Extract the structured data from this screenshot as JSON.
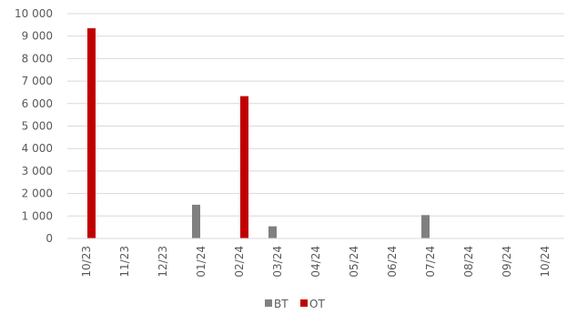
{
  "chart_data": {
    "type": "bar",
    "categories": [
      "10/23",
      "11/23",
      "12/23",
      "01/24",
      "02/24",
      "03/24",
      "04/24",
      "05/24",
      "06/24",
      "07/24",
      "08/24",
      "09/24",
      "10/24"
    ],
    "series": [
      {
        "name": "BT",
        "color": "#808080",
        "values": [
          0,
          0,
          0,
          1500,
          0,
          540,
          0,
          0,
          0,
          1040,
          0,
          0,
          0
        ]
      },
      {
        "name": "OT",
        "color": "#C00000",
        "values": [
          9350,
          0,
          0,
          0,
          6330,
          0,
          0,
          0,
          0,
          0,
          0,
          0,
          0
        ]
      }
    ],
    "ylim": [
      0,
      10000
    ],
    "yticks": [
      0,
      1000,
      2000,
      3000,
      4000,
      5000,
      6000,
      7000,
      8000,
      9000,
      10000
    ],
    "ytick_labels": [
      "0",
      "1 000",
      "2 000",
      "3 000",
      "4 000",
      "5 000",
      "6 000",
      "7 000",
      "8 000",
      "9 000",
      "10 000"
    ],
    "grid": true,
    "legend_position": "bottom",
    "title": "",
    "xlabel": "",
    "ylabel": ""
  }
}
